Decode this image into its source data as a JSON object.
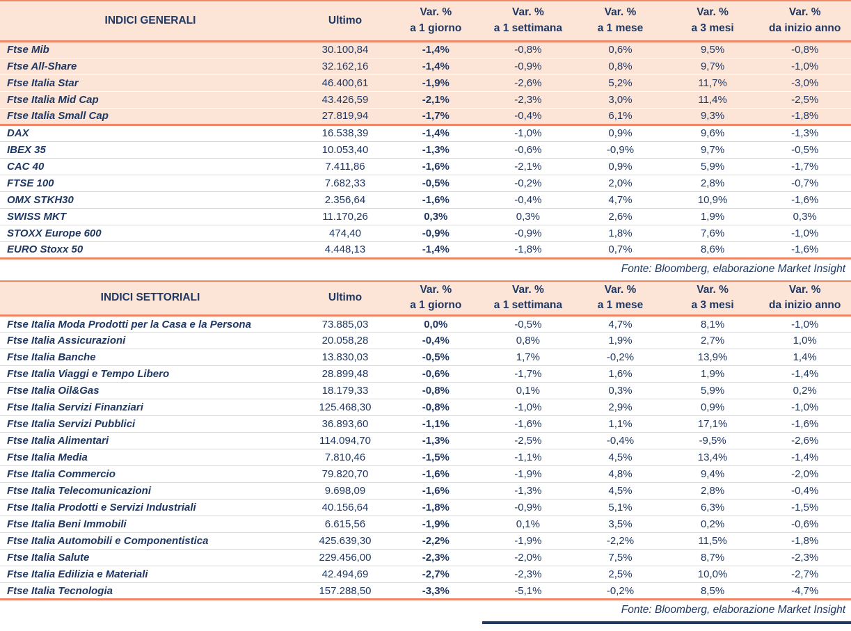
{
  "columns": {
    "ultimo": "Ultimo",
    "var_label": "Var. %",
    "periods": [
      "a 1 giorno",
      "a 1 settimana",
      "a 1 mese",
      "a 3 mesi",
      "da inizio anno"
    ]
  },
  "colors": {
    "navy_text": "#1F3864",
    "peach_bg": "#FCE4D6",
    "salmon_line": "#EE8667",
    "row_separator": "#D9D9D9"
  },
  "chart_data": [
    {
      "type": "table",
      "title": "INDICI GENERALI",
      "source": "Fonte: Bloomberg, elaborazione Market Insight",
      "columns": [
        "INDICI GENERALI",
        "Ultimo",
        "Var. % a 1 giorno",
        "Var. % a 1 settimana",
        "Var. % a 1 mese",
        "Var. % a 3 mesi",
        "Var. % da inizio anno"
      ],
      "groups": [
        {
          "highlight": true,
          "rows": [
            [
              "Ftse Mib",
              "30.100,84",
              "-1,4%",
              "-0,8%",
              "0,6%",
              "9,5%",
              "-0,8%"
            ],
            [
              "Ftse All-Share",
              "32.162,16",
              "-1,4%",
              "-0,9%",
              "0,8%",
              "9,7%",
              "-1,0%"
            ],
            [
              "Ftse Italia Star",
              "46.400,61",
              "-1,9%",
              "-2,6%",
              "5,2%",
              "11,7%",
              "-3,0%"
            ],
            [
              "Ftse Italia Mid Cap",
              "43.426,59",
              "-2,1%",
              "-2,3%",
              "3,0%",
              "11,4%",
              "-2,5%"
            ],
            [
              "Ftse Italia Small Cap",
              "27.819,94",
              "-1,7%",
              "-0,4%",
              "6,1%",
              "9,3%",
              "-1,8%"
            ]
          ]
        },
        {
          "highlight": false,
          "rows": [
            [
              "DAX",
              "16.538,39",
              "-1,4%",
              "-1,0%",
              "0,9%",
              "9,6%",
              "-1,3%"
            ],
            [
              "IBEX 35",
              "10.053,40",
              "-1,3%",
              "-0,6%",
              "-0,9%",
              "9,7%",
              "-0,5%"
            ],
            [
              "CAC 40",
              "7.411,86",
              "-1,6%",
              "-2,1%",
              "0,9%",
              "5,9%",
              "-1,7%"
            ],
            [
              "FTSE 100",
              "7.682,33",
              "-0,5%",
              "-0,2%",
              "2,0%",
              "2,8%",
              "-0,7%"
            ],
            [
              "OMX STKH30",
              "2.356,64",
              "-1,6%",
              "-0,4%",
              "4,7%",
              "10,9%",
              "-1,6%"
            ],
            [
              "SWISS MKT",
              "11.170,26",
              "0,3%",
              "0,3%",
              "2,6%",
              "1,9%",
              "0,3%"
            ],
            [
              "STOXX Europe 600",
              "474,40",
              "-0,9%",
              "-0,9%",
              "1,8%",
              "7,6%",
              "-1,0%"
            ],
            [
              "EURO Stoxx 50",
              "4.448,13",
              "-1,4%",
              "-1,8%",
              "0,7%",
              "8,6%",
              "-1,6%"
            ]
          ]
        }
      ]
    },
    {
      "type": "table",
      "title": "INDICI SETTORIALI",
      "source": "Fonte: Bloomberg, elaborazione Market Insight",
      "columns": [
        "INDICI SETTORIALI",
        "Ultimo",
        "Var. % a 1 giorno",
        "Var. % a 1 settimana",
        "Var. % a 1 mese",
        "Var. % a 3 mesi",
        "Var. % da inizio anno"
      ],
      "groups": [
        {
          "highlight": false,
          "rows": [
            [
              "Ftse Italia Moda Prodotti per la Casa e la Persona",
              "73.885,03",
              "0,0%",
              "-0,5%",
              "4,7%",
              "8,1%",
              "-1,0%"
            ],
            [
              "Ftse Italia Assicurazioni",
              "20.058,28",
              "-0,4%",
              "0,8%",
              "1,9%",
              "2,7%",
              "1,0%"
            ],
            [
              "Ftse Italia Banche",
              "13.830,03",
              "-0,5%",
              "1,7%",
              "-0,2%",
              "13,9%",
              "1,4%"
            ],
            [
              "Ftse Italia Viaggi e Tempo Libero",
              "28.899,48",
              "-0,6%",
              "-1,7%",
              "1,6%",
              "1,9%",
              "-1,4%"
            ],
            [
              "Ftse Italia Oil&Gas",
              "18.179,33",
              "-0,8%",
              "0,1%",
              "0,3%",
              "5,9%",
              "0,2%"
            ],
            [
              "Ftse Italia Servizi Finanziari",
              "125.468,30",
              "-0,8%",
              "-1,0%",
              "2,9%",
              "0,9%",
              "-1,0%"
            ],
            [
              "Ftse Italia Servizi Pubblici",
              "36.893,60",
              "-1,1%",
              "-1,6%",
              "1,1%",
              "17,1%",
              "-1,6%"
            ],
            [
              "Ftse Italia Alimentari",
              "114.094,70",
              "-1,3%",
              "-2,5%",
              "-0,4%",
              "-9,5%",
              "-2,6%"
            ],
            [
              "Ftse Italia Media",
              "7.810,46",
              "-1,5%",
              "-1,1%",
              "4,5%",
              "13,4%",
              "-1,4%"
            ],
            [
              "Ftse Italia Commercio",
              "79.820,70",
              "-1,6%",
              "-1,9%",
              "4,8%",
              "9,4%",
              "-2,0%"
            ],
            [
              "Ftse Italia Telecomunicazioni",
              "9.698,09",
              "-1,6%",
              "-1,3%",
              "4,5%",
              "2,8%",
              "-0,4%"
            ],
            [
              "Ftse Italia Prodotti e Servizi Industriali",
              "40.156,64",
              "-1,8%",
              "-0,9%",
              "5,1%",
              "6,3%",
              "-1,5%"
            ],
            [
              "Ftse Italia Beni Immobili",
              "6.615,56",
              "-1,9%",
              "0,1%",
              "3,5%",
              "0,2%",
              "-0,6%"
            ],
            [
              "Ftse Italia Automobili e Componentistica",
              "425.639,30",
              "-2,2%",
              "-1,9%",
              "-2,2%",
              "11,5%",
              "-1,8%"
            ],
            [
              "Ftse Italia Salute",
              "229.456,00",
              "-2,3%",
              "-2,0%",
              "7,5%",
              "8,7%",
              "-2,3%"
            ],
            [
              "Ftse Italia Edilizia e Materiali",
              "42.494,69",
              "-2,7%",
              "-2,3%",
              "2,5%",
              "10,0%",
              "-2,7%"
            ],
            [
              "Ftse Italia Tecnologia",
              "157.288,50",
              "-3,3%",
              "-5,1%",
              "-0,2%",
              "8,5%",
              "-4,7%"
            ]
          ]
        }
      ]
    }
  ]
}
